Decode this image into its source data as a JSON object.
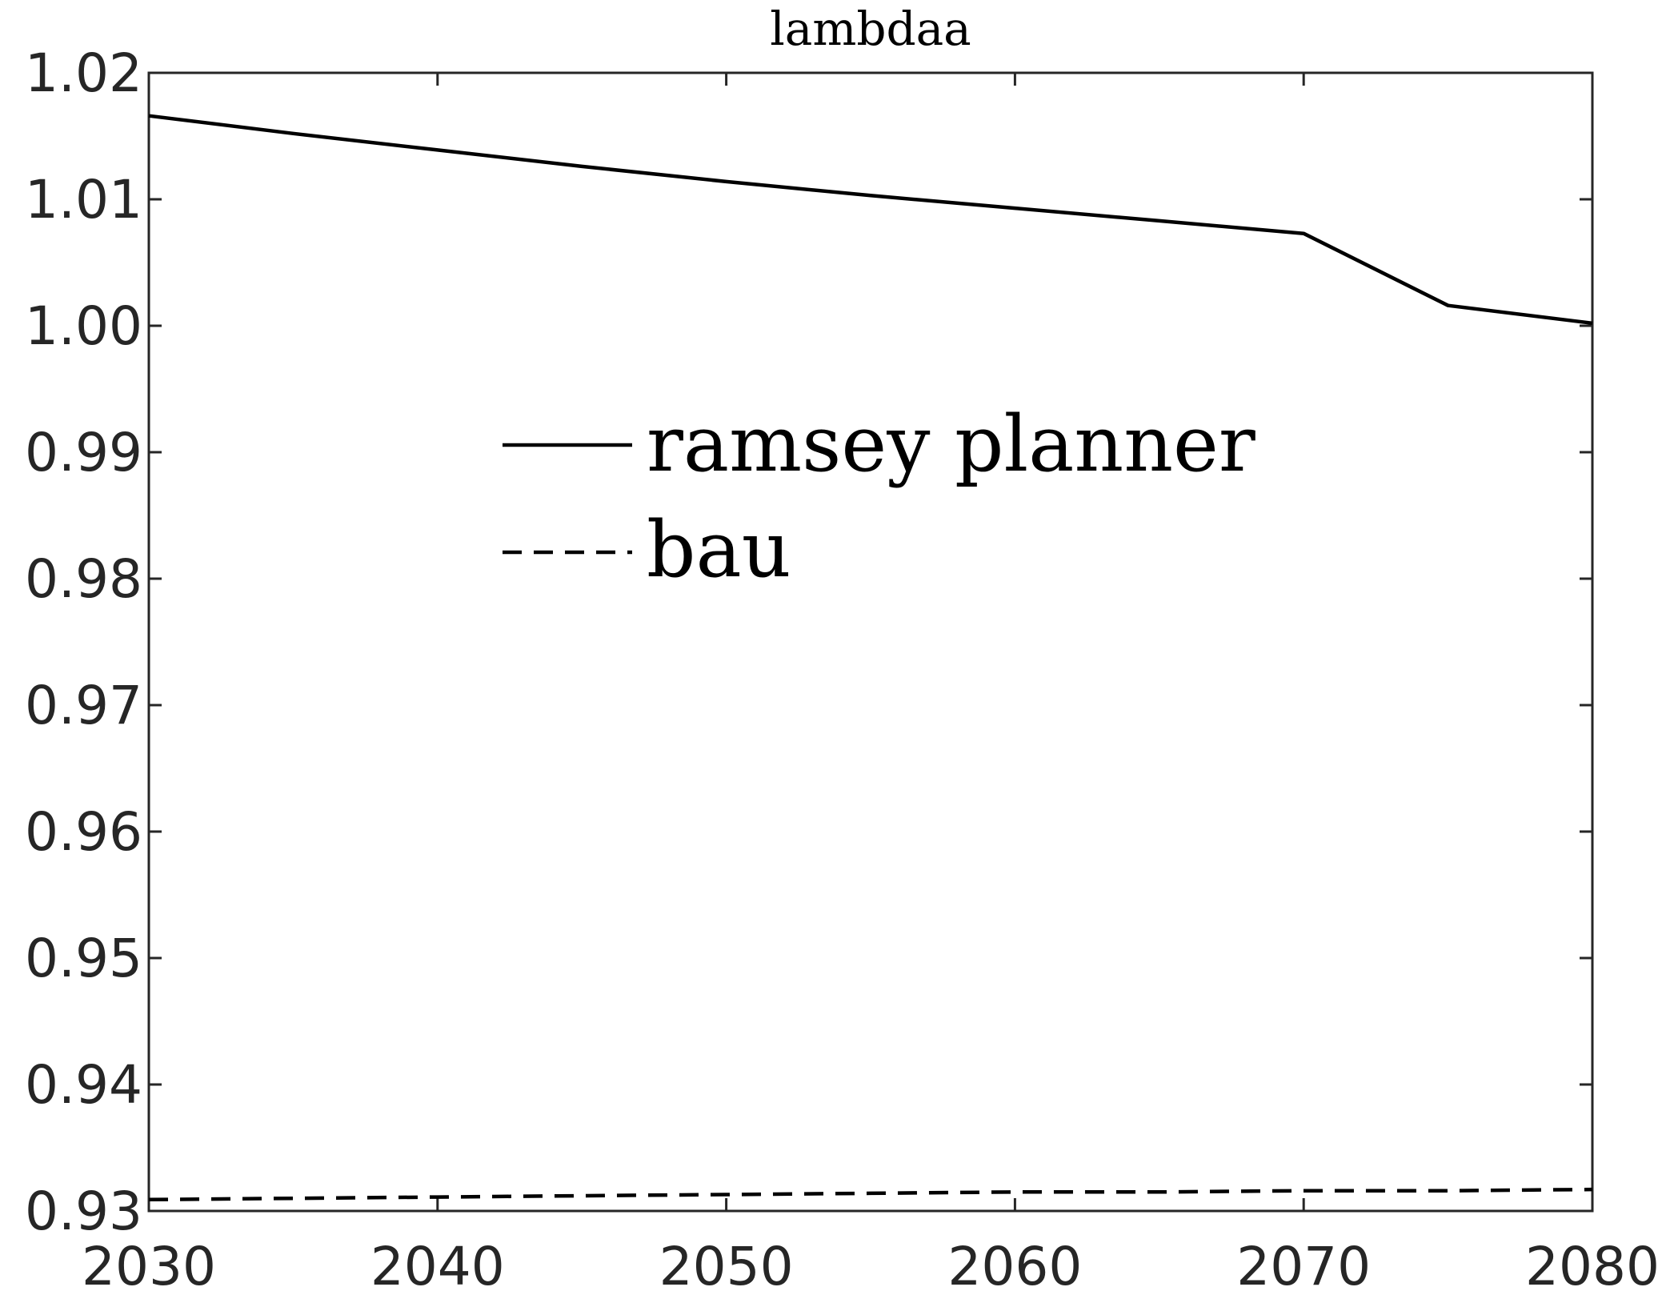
{
  "chart_data": {
    "type": "line",
    "title": "lambdaa",
    "xlabel": "",
    "ylabel": "",
    "xlim": [
      2030,
      2080
    ],
    "ylim": [
      0.93,
      1.02
    ],
    "xticks": [
      2030,
      2040,
      2050,
      2060,
      2070,
      2080
    ],
    "xtick_labels": [
      "2030",
      "2040",
      "2050",
      "2060",
      "2070",
      "2080"
    ],
    "yticks": [
      0.93,
      0.94,
      0.95,
      0.96,
      0.97,
      0.98,
      0.99,
      1.0,
      1.01,
      1.02
    ],
    "ytick_labels": [
      "0.93",
      "0.94",
      "0.95",
      "0.96",
      "0.97",
      "0.98",
      "0.99",
      "1.00",
      "1.01",
      "1.02"
    ],
    "grid": false,
    "legend_position": "upper-center",
    "series": [
      {
        "name": "ramsey planner",
        "style": "solid",
        "color": "#000000",
        "x": [
          2030,
          2035,
          2040,
          2045,
          2050,
          2055,
          2060,
          2065,
          2070,
          2075,
          2080
        ],
        "y": [
          1.0166,
          1.0152,
          1.0139,
          1.0126,
          1.0114,
          1.0103,
          1.0093,
          1.0083,
          1.0073,
          1.0016,
          1.0002
        ]
      },
      {
        "name": "bau",
        "style": "dashed",
        "color": "#000000",
        "x": [
          2030,
          2035,
          2040,
          2045,
          2050,
          2055,
          2060,
          2065,
          2070,
          2075,
          2080
        ],
        "y": [
          0.9309,
          0.931,
          0.9311,
          0.9312,
          0.9313,
          0.9314,
          0.9315,
          0.9315,
          0.9316,
          0.9316,
          0.9317
        ]
      }
    ]
  }
}
